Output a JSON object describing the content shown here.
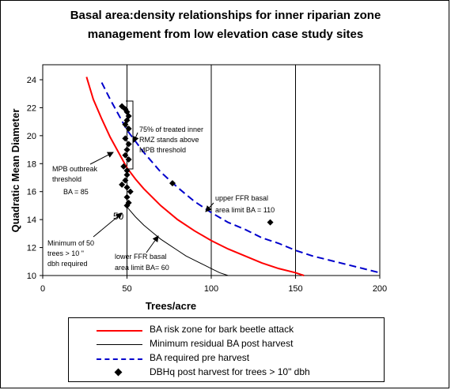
{
  "chart_data": {
    "type": "line",
    "title_line1": "Basal area:density relationships for inner riparian zone",
    "title_line2": "management from low elevation case study sites",
    "xlabel": "Trees/acre",
    "ylabel": "Quadratic Mean Diameter",
    "xlim": [
      0,
      200
    ],
    "ylim": [
      10,
      24
    ],
    "xticks": [
      0,
      50,
      100,
      150,
      200
    ],
    "yticks": [
      10,
      12,
      14,
      16,
      18,
      20,
      22,
      24
    ],
    "vertical_gridlines": [
      50,
      100,
      150
    ],
    "series": [
      {
        "name": "BA risk zone for bark beetle attack",
        "color": "#ff0000",
        "style": "solid",
        "basal_area": 85,
        "x": [
          26,
          30,
          35,
          40,
          45,
          50,
          55,
          60,
          70,
          80,
          90,
          100,
          110,
          120,
          130,
          140,
          150,
          155
        ],
        "y": [
          24.2,
          22.6,
          21.2,
          19.9,
          18.8,
          17.7,
          16.9,
          16.2,
          15.0,
          14.0,
          13.2,
          12.5,
          11.9,
          11.4,
          10.9,
          10.5,
          10.2,
          10.0
        ]
      },
      {
        "name": "Minimum residual BA post harvest",
        "color": "#000000",
        "style": "solid",
        "basal_area": 60,
        "x": [
          50,
          55,
          60,
          65,
          70,
          75,
          80,
          85,
          90,
          95,
          100,
          105,
          110
        ],
        "y": [
          14.9,
          14.2,
          13.6,
          13.1,
          12.6,
          12.2,
          11.8,
          11.4,
          11.1,
          10.8,
          10.5,
          10.2,
          10.0
        ]
      },
      {
        "name": "BA required pre harvest",
        "color": "#0000cc",
        "style": "dashed",
        "basal_area": 110,
        "x": [
          35,
          40,
          45,
          50,
          55,
          60,
          70,
          80,
          90,
          100,
          110,
          120,
          130,
          140,
          150,
          160,
          170,
          180,
          190,
          200
        ],
        "y": [
          23.8,
          22.6,
          21.5,
          20.4,
          19.6,
          18.8,
          17.4,
          16.3,
          15.3,
          14.5,
          13.8,
          13.3,
          12.7,
          12.3,
          11.8,
          11.4,
          11.1,
          10.8,
          10.5,
          10.2
        ]
      },
      {
        "name": "DBHq post harvest for trees > 10\" dbh",
        "color": "#000000",
        "style": "marker",
        "points": [
          [
            47,
            22.1
          ],
          [
            49,
            21.9
          ],
          [
            50,
            21.7
          ],
          [
            51,
            21.4
          ],
          [
            50,
            21.1
          ],
          [
            49,
            20.8
          ],
          [
            51,
            20.5
          ],
          [
            49,
            19.8
          ],
          [
            51,
            19.4
          ],
          [
            50,
            19.0
          ],
          [
            49,
            18.6
          ],
          [
            51,
            18.3
          ],
          [
            48,
            17.8
          ],
          [
            50,
            17.5
          ],
          [
            50,
            17.2
          ],
          [
            49,
            16.8
          ],
          [
            47,
            16.5
          ],
          [
            50,
            16.3
          ],
          [
            52,
            16.0
          ],
          [
            50,
            15.6
          ],
          [
            51,
            15.2
          ],
          [
            50,
            15.0
          ],
          [
            77,
            16.6
          ],
          [
            135,
            13.8
          ]
        ]
      }
    ],
    "annotations": [
      {
        "id": "mpb-stands",
        "lines": [
          "75% of treated inner",
          "RMZ stands above",
          "MPB threshold"
        ]
      },
      {
        "id": "mpb-threshold",
        "lines": [
          "MPB outbreak",
          "threshold",
          "BA = 85"
        ]
      },
      {
        "id": "upper-ffr",
        "lines": [
          "upper FFR basal",
          "area limit  BA = 110"
        ]
      },
      {
        "id": "min50",
        "lines": [
          "Minimum of 50",
          "trees > 10 \"",
          "dbh required"
        ]
      },
      {
        "id": "lower-ffr",
        "lines": [
          "lower FFR basal",
          "area limit    BA= 60"
        ]
      },
      {
        "id": "label-50",
        "lines": [
          "50"
        ]
      }
    ]
  }
}
